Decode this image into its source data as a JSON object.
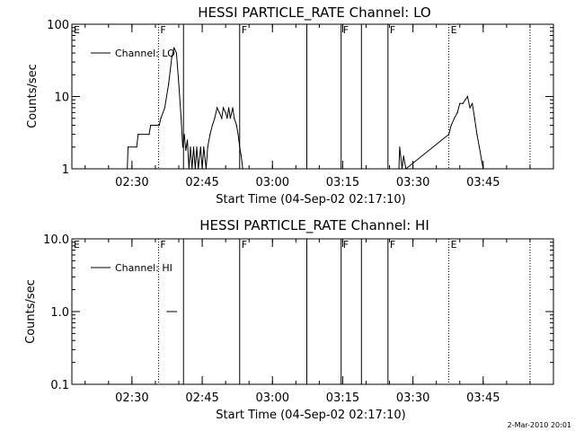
{
  "footer": {
    "timestamp": "2-Mar-2010 20:01"
  },
  "chart_data": [
    {
      "type": "line",
      "title": "HESSI PARTICLE_RATE Channel: LO",
      "xlabel": "Start Time (04-Sep-02 02:17:10)",
      "ylabel": "Counts/sec",
      "y_scale": "log",
      "ylim": [
        1,
        100
      ],
      "y_ticks": [
        {
          "value": 1,
          "label": "1"
        },
        {
          "value": 10,
          "label": "10"
        },
        {
          "value": 100,
          "label": "100"
        }
      ],
      "xlim": [
        "02:17:10",
        "04:00:00"
      ],
      "x_ticks": [
        {
          "time": "02:30",
          "label": "02:30"
        },
        {
          "time": "02:45",
          "label": "02:45"
        },
        {
          "time": "03:00",
          "label": "03:00"
        },
        {
          "time": "03:15",
          "label": "03:15"
        },
        {
          "time": "03:30",
          "label": "03:30"
        },
        {
          "time": "03:45",
          "label": "03:45"
        }
      ],
      "legend": {
        "placement": "top-left",
        "entries": [
          "Channel: LO"
        ]
      },
      "markers": [
        {
          "time": "02:17:10",
          "label": "E",
          "style": "dotted"
        },
        {
          "time": "02:35:40",
          "label": "F",
          "style": "dotted"
        },
        {
          "time": "02:41:00",
          "label": "",
          "style": "solid"
        },
        {
          "time": "02:53:00",
          "label": "F",
          "style": "solid"
        },
        {
          "time": "03:07:20",
          "label": "",
          "style": "solid"
        },
        {
          "time": "03:14:40",
          "label": "F",
          "style": "solid"
        },
        {
          "time": "03:19:00",
          "label": "",
          "style": "solid"
        },
        {
          "time": "03:24:40",
          "label": "F",
          "style": "solid"
        },
        {
          "time": "03:37:40",
          "label": "E",
          "style": "dotted"
        },
        {
          "time": "03:55:00",
          "label": "",
          "style": "dotted"
        }
      ],
      "series": [
        {
          "name": "Channel: LO",
          "points": [
            {
              "time": "02:29:00",
              "value": 1
            },
            {
              "time": "02:29:10",
              "value": 2
            },
            {
              "time": "02:31:00",
              "value": 2
            },
            {
              "time": "02:31:20",
              "value": 3
            },
            {
              "time": "02:33:40",
              "value": 3
            },
            {
              "time": "02:34:00",
              "value": 4
            },
            {
              "time": "02:35:50",
              "value": 4
            },
            {
              "time": "02:36:10",
              "value": 5
            },
            {
              "time": "02:37:00",
              "value": 7
            },
            {
              "time": "02:37:50",
              "value": 15
            },
            {
              "time": "02:38:30",
              "value": 35
            },
            {
              "time": "02:39:00",
              "value": 47
            },
            {
              "time": "02:39:30",
              "value": 40
            },
            {
              "time": "02:40:00",
              "value": 15
            },
            {
              "time": "02:40:30",
              "value": 5
            },
            {
              "time": "02:40:50",
              "value": 2
            },
            {
              "time": "02:41:10",
              "value": 3
            },
            {
              "time": "02:41:30",
              "value": 1.8
            },
            {
              "time": "02:41:50",
              "value": 2.5
            },
            {
              "time": "02:42:10",
              "value": 1
            },
            {
              "time": "02:42:30",
              "value": 2
            },
            {
              "time": "02:42:50",
              "value": 1
            },
            {
              "time": "02:43:10",
              "value": 2
            },
            {
              "time": "02:43:30",
              "value": 1
            },
            {
              "time": "02:43:50",
              "value": 2
            },
            {
              "time": "02:44:10",
              "value": 1
            },
            {
              "time": "02:44:40",
              "value": 2
            },
            {
              "time": "02:45:00",
              "value": 1
            },
            {
              "time": "02:45:20",
              "value": 2
            },
            {
              "time": "02:45:50",
              "value": 1
            },
            {
              "time": "02:46:10",
              "value": 2
            },
            {
              "time": "02:46:40",
              "value": 3
            },
            {
              "time": "02:47:10",
              "value": 4
            },
            {
              "time": "02:47:40",
              "value": 5
            },
            {
              "time": "02:48:10",
              "value": 7
            },
            {
              "time": "02:48:40",
              "value": 6
            },
            {
              "time": "02:49:10",
              "value": 5
            },
            {
              "time": "02:49:30",
              "value": 7
            },
            {
              "time": "02:50:00",
              "value": 6
            },
            {
              "time": "02:50:20",
              "value": 5
            },
            {
              "time": "02:50:40",
              "value": 7
            },
            {
              "time": "02:51:00",
              "value": 5
            },
            {
              "time": "02:51:30",
              "value": 7
            },
            {
              "time": "02:51:50",
              "value": 5
            },
            {
              "time": "02:52:20",
              "value": 4
            },
            {
              "time": "02:52:40",
              "value": 3
            },
            {
              "time": "02:53:00",
              "value": 2
            },
            {
              "time": "02:53:20",
              "value": 1.5
            },
            {
              "time": "02:53:40",
              "value": 1
            },
            {
              "time": "03:27:00",
              "value": 1
            },
            {
              "time": "03:27:10",
              "value": 2
            },
            {
              "time": "03:27:40",
              "value": 1
            },
            {
              "time": "03:28:00",
              "value": 1.5
            },
            {
              "time": "03:28:30",
              "value": 1
            },
            {
              "time": "03:37:40",
              "value": 3
            },
            {
              "time": "03:38:10",
              "value": 4
            },
            {
              "time": "03:38:50",
              "value": 5
            },
            {
              "time": "03:39:30",
              "value": 6
            },
            {
              "time": "03:40:00",
              "value": 8
            },
            {
              "time": "03:40:40",
              "value": 8
            },
            {
              "time": "03:41:10",
              "value": 9
            },
            {
              "time": "03:41:40",
              "value": 10
            },
            {
              "time": "03:42:10",
              "value": 7
            },
            {
              "time": "03:42:40",
              "value": 8
            },
            {
              "time": "03:43:10",
              "value": 5
            },
            {
              "time": "03:43:40",
              "value": 3
            },
            {
              "time": "03:44:10",
              "value": 2
            },
            {
              "time": "03:44:40",
              "value": 1.3
            },
            {
              "time": "03:45:00",
              "value": 1
            }
          ]
        }
      ]
    },
    {
      "type": "line",
      "title": "HESSI PARTICLE_RATE Channel: HI",
      "xlabel": "Start Time (04-Sep-02 02:17:10)",
      "ylabel": "Counts/sec",
      "y_scale": "log",
      "ylim": [
        0.1,
        10
      ],
      "y_ticks": [
        {
          "value": 0.1,
          "label": "0.1"
        },
        {
          "value": 1,
          "label": "1.0"
        },
        {
          "value": 10,
          "label": "10.0"
        }
      ],
      "xlim": [
        "02:17:10",
        "04:00:00"
      ],
      "x_ticks": [
        {
          "time": "02:30",
          "label": "02:30"
        },
        {
          "time": "02:45",
          "label": "02:45"
        },
        {
          "time": "03:00",
          "label": "03:00"
        },
        {
          "time": "03:15",
          "label": "03:15"
        },
        {
          "time": "03:30",
          "label": "03:30"
        },
        {
          "time": "03:45",
          "label": "03:45"
        }
      ],
      "legend": {
        "placement": "top-left",
        "entries": [
          "Channel: HI"
        ]
      },
      "markers": [
        {
          "time": "02:17:10",
          "label": "E",
          "style": "dotted"
        },
        {
          "time": "02:35:40",
          "label": "F",
          "style": "dotted"
        },
        {
          "time": "02:41:00",
          "label": "",
          "style": "solid"
        },
        {
          "time": "02:53:00",
          "label": "F",
          "style": "solid"
        },
        {
          "time": "03:07:20",
          "label": "",
          "style": "solid"
        },
        {
          "time": "03:14:40",
          "label": "F",
          "style": "solid"
        },
        {
          "time": "03:19:00",
          "label": "",
          "style": "solid"
        },
        {
          "time": "03:24:40",
          "label": "F",
          "style": "solid"
        },
        {
          "time": "03:37:40",
          "label": "E",
          "style": "dotted"
        },
        {
          "time": "03:55:00",
          "label": "",
          "style": "dotted"
        }
      ],
      "series": [
        {
          "name": "Channel: HI",
          "points": [
            {
              "time": "02:37:30",
              "value": 1
            },
            {
              "time": "02:39:30",
              "value": 1
            }
          ]
        }
      ]
    }
  ]
}
